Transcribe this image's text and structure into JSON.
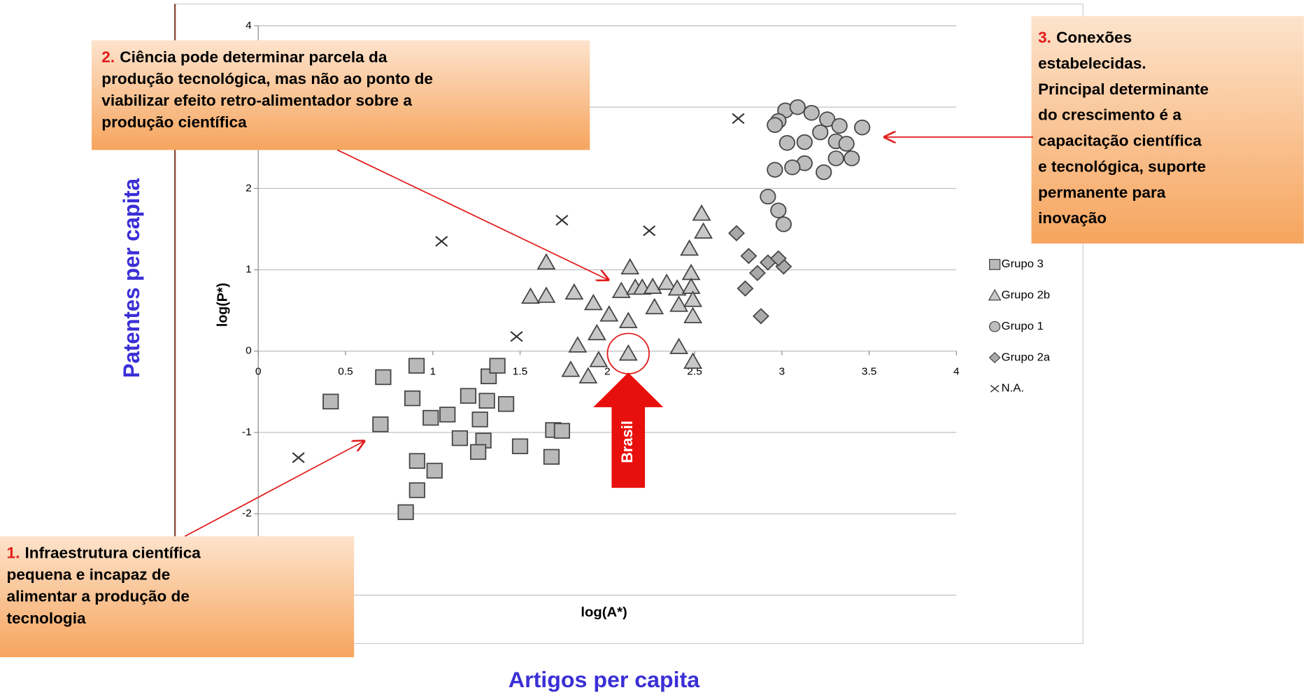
{
  "chart_data": {
    "type": "scatter",
    "xlabel": "log(A*)",
    "ylabel": "log(P*)",
    "outer_xlabel": "Artigos per capita",
    "outer_ylabel": "Patentes per capita",
    "xlim": [
      0,
      4
    ],
    "ylim": [
      -3,
      4
    ],
    "xticks": [
      0,
      0.5,
      1,
      1.5,
      2,
      2.5,
      3,
      3.5,
      4
    ],
    "yticks": [
      -3,
      -2,
      -1,
      0,
      1,
      2,
      3,
      4
    ],
    "grid": true,
    "series": [
      {
        "name": "Grupo 3",
        "marker": "square",
        "color": "#888888",
        "x": [
          0.415,
          0.716,
          0.907,
          0.7,
          0.883,
          0.988,
          1.084,
          1.203,
          1.155,
          1.27,
          1.29,
          1.32,
          1.37,
          1.42,
          1.26,
          0.91,
          1.01,
          0.91,
          0.845,
          1.5,
          1.69,
          1.74,
          1.68,
          1.31
        ],
        "values": [
          -0.62,
          -0.32,
          -0.18,
          -0.9,
          -0.58,
          -0.82,
          -0.78,
          -0.55,
          -1.07,
          -0.84,
          -1.1,
          -0.31,
          -0.18,
          -0.65,
          -1.24,
          -1.35,
          -1.47,
          -1.71,
          -1.98,
          -1.17,
          -0.97,
          -0.98,
          -1.3,
          -0.61
        ]
      },
      {
        "name": "Grupo 2b",
        "marker": "triangle",
        "color": "#888888",
        "x": [
          1.65,
          1.56,
          1.65,
          1.81,
          1.92,
          2.01,
          2.08,
          2.13,
          2.16,
          2.2,
          2.27,
          2.26,
          2.34,
          2.4,
          2.41,
          2.48,
          2.48,
          2.49,
          2.49,
          2.47,
          2.54,
          2.55,
          2.12,
          1.94,
          1.83,
          1.79,
          1.89,
          1.95,
          2.12,
          2.41,
          2.49
        ],
        "values": [
          1.09,
          0.67,
          0.68,
          0.72,
          0.59,
          0.45,
          0.74,
          1.03,
          0.78,
          0.78,
          0.54,
          0.79,
          0.84,
          0.77,
          0.57,
          0.96,
          0.79,
          0.63,
          0.43,
          1.26,
          1.69,
          1.47,
          0.37,
          0.22,
          0.07,
          -0.23,
          -0.31,
          -0.11,
          -0.03,
          0.05,
          -0.13
        ]
      },
      {
        "name": "Grupo 1",
        "marker": "circle",
        "color": "#888888",
        "x": [
          3.02,
          3.09,
          3.17,
          3.26,
          3.33,
          3.46,
          3.03,
          3.13,
          3.22,
          3.31,
          3.37,
          3.4,
          3.31,
          3.24,
          3.13,
          2.96,
          3.06,
          2.98,
          2.92,
          2.98,
          3.01,
          2.96
        ],
        "values": [
          2.96,
          3.0,
          2.93,
          2.85,
          2.77,
          2.75,
          2.56,
          2.57,
          2.69,
          2.58,
          2.55,
          2.37,
          2.37,
          2.2,
          2.31,
          2.23,
          2.26,
          2.83,
          1.9,
          1.73,
          1.56,
          2.78
        ]
      },
      {
        "name": "Grupo 2a",
        "marker": "diamond",
        "color": "#888888",
        "x": [
          2.74,
          2.81,
          2.86,
          2.92,
          2.79,
          3.01,
          2.88,
          2.98
        ],
        "values": [
          1.45,
          1.17,
          0.96,
          1.09,
          0.77,
          1.04,
          0.43,
          1.14
        ]
      },
      {
        "name": "N.A.",
        "marker": "x",
        "color": "#333333",
        "x": [
          0.23,
          1.05,
          1.74,
          1.48,
          2.24,
          2.75
        ],
        "values": [
          -1.31,
          1.35,
          1.61,
          0.18,
          1.48,
          2.86
        ]
      }
    ],
    "highlight": {
      "label": "Brasil",
      "x": 2.12,
      "y": -0.03
    },
    "annotations": [
      {
        "number": "1.",
        "lines": [
          "Infraestrutura científica",
          "pequena e incapaz de",
          "alimentar a produção de",
          "tecnologia"
        ]
      },
      {
        "number": "2.",
        "lines": [
          "Ciência pode determinar parcela da",
          "produção tecnológica, mas não ao ponto de",
          "viabilizar efeito retro-alimentador sobre a",
          "produção científica"
        ]
      },
      {
        "number": "3.",
        "lines": [
          "Conexões",
          "estabelecidas.",
          "Principal determinante",
          "do crescimento é a",
          "capacitação científica",
          "e tecnológica, suporte",
          "permanente para",
          "inovação"
        ]
      }
    ]
  }
}
